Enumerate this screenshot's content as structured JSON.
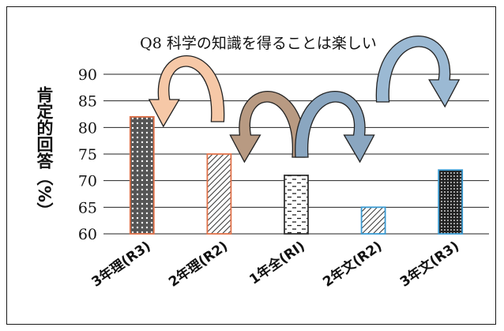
{
  "chart_data": {
    "type": "bar",
    "title": "Q8 科学の知識を得ることは楽しい",
    "ylabel": "肯定的回答（%）",
    "xlabel": "",
    "categories": [
      "3年理(R3)",
      "2年理(R2)",
      "1年全(RI)",
      "2年文(R2)",
      "3年文(R3)"
    ],
    "values": [
      82,
      75,
      71,
      65,
      72
    ],
    "ylim": [
      60,
      90
    ],
    "yticks": [
      "60",
      "65",
      "70",
      "75",
      "80",
      "85",
      "90"
    ],
    "grid": true,
    "bar_colors": [
      "#e0724a",
      "#e0724a",
      "#333333",
      "#3b9ad1",
      "#3b9ad1"
    ],
    "bar_patterns": [
      "dots",
      "diagonal",
      "dashes",
      "diagonal",
      "dense-dots"
    ],
    "arrow_colors": [
      "#f6c8a7",
      "#b89a82",
      "#8aa6c0",
      "#9bb9d3"
    ]
  }
}
